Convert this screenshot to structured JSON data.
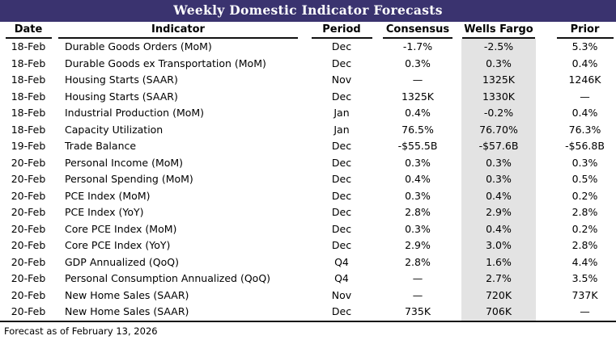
{
  "title": "Weekly Domestic Indicator Forecasts",
  "colors": {
    "title_bar_bg": "#3A336F",
    "title_text": "#FFFFFF",
    "wells_fargo_band_bg": "#E3E3E3",
    "rule_color": "#111111"
  },
  "table": {
    "columns": [
      "Date",
      "Indicator",
      "Period",
      "Consensus",
      "Wells Fargo",
      "Prior"
    ],
    "column_keys": [
      "date",
      "indicator",
      "period",
      "consensus",
      "wells_fargo",
      "prior"
    ],
    "rows": [
      {
        "date": "18-Feb",
        "indicator": "Durable Goods Orders (MoM)",
        "period": "Dec",
        "consensus": "-1.7%",
        "wells_fargo": "-2.5%",
        "prior": "5.3%"
      },
      {
        "date": "18-Feb",
        "indicator": "Durable Goods ex Transportation (MoM)",
        "period": "Dec",
        "consensus": "0.3%",
        "wells_fargo": "0.3%",
        "prior": "0.4%"
      },
      {
        "date": "18-Feb",
        "indicator": "Housing Starts (SAAR)",
        "period": "Nov",
        "consensus": "—",
        "wells_fargo": "1325K",
        "prior": "1246K"
      },
      {
        "date": "18-Feb",
        "indicator": "Housing Starts (SAAR)",
        "period": "Dec",
        "consensus": "1325K",
        "wells_fargo": "1330K",
        "prior": "—"
      },
      {
        "date": "18-Feb",
        "indicator": "Industrial Production (MoM)",
        "period": "Jan",
        "consensus": "0.4%",
        "wells_fargo": "-0.2%",
        "prior": "0.4%"
      },
      {
        "date": "18-Feb",
        "indicator": "Capacity Utilization",
        "period": "Jan",
        "consensus": "76.5%",
        "wells_fargo": "76.70%",
        "prior": "76.3%"
      },
      {
        "date": "19-Feb",
        "indicator": "Trade Balance",
        "period": "Dec",
        "consensus": "-$55.5B",
        "wells_fargo": "-$57.6B",
        "prior": "-$56.8B"
      },
      {
        "date": "20-Feb",
        "indicator": "Personal Income (MoM)",
        "period": "Dec",
        "consensus": "0.3%",
        "wells_fargo": "0.3%",
        "prior": "0.3%"
      },
      {
        "date": "20-Feb",
        "indicator": "Personal Spending (MoM)",
        "period": "Dec",
        "consensus": "0.4%",
        "wells_fargo": "0.3%",
        "prior": "0.5%"
      },
      {
        "date": "20-Feb",
        "indicator": "PCE Index (MoM)",
        "period": "Dec",
        "consensus": "0.3%",
        "wells_fargo": "0.4%",
        "prior": "0.2%"
      },
      {
        "date": "20-Feb",
        "indicator": "PCE Index (YoY)",
        "period": "Dec",
        "consensus": "2.8%",
        "wells_fargo": "2.9%",
        "prior": "2.8%"
      },
      {
        "date": "20-Feb",
        "indicator": "Core PCE Index (MoM)",
        "period": "Dec",
        "consensus": "0.3%",
        "wells_fargo": "0.4%",
        "prior": "0.2%"
      },
      {
        "date": "20-Feb",
        "indicator": "Core PCE Index (YoY)",
        "period": "Dec",
        "consensus": "2.9%",
        "wells_fargo": "3.0%",
        "prior": "2.8%"
      },
      {
        "date": "20-Feb",
        "indicator": "GDP Annualized (QoQ)",
        "period": "Q4",
        "consensus": "2.8%",
        "wells_fargo": "1.6%",
        "prior": "4.4%"
      },
      {
        "date": "20-Feb",
        "indicator": "Personal Consumption Annualized (QoQ)",
        "period": "Q4",
        "consensus": "—",
        "wells_fargo": "2.7%",
        "prior": "3.5%"
      },
      {
        "date": "20-Feb",
        "indicator": "New Home Sales (SAAR)",
        "period": "Nov",
        "consensus": "—",
        "wells_fargo": "720K",
        "prior": "737K"
      },
      {
        "date": "20-Feb",
        "indicator": "New Home Sales (SAAR)",
        "period": "Dec",
        "consensus": "735K",
        "wells_fargo": "706K",
        "prior": "—"
      }
    ]
  },
  "footer": {
    "note": "Forecast as of February 13, 2026"
  }
}
